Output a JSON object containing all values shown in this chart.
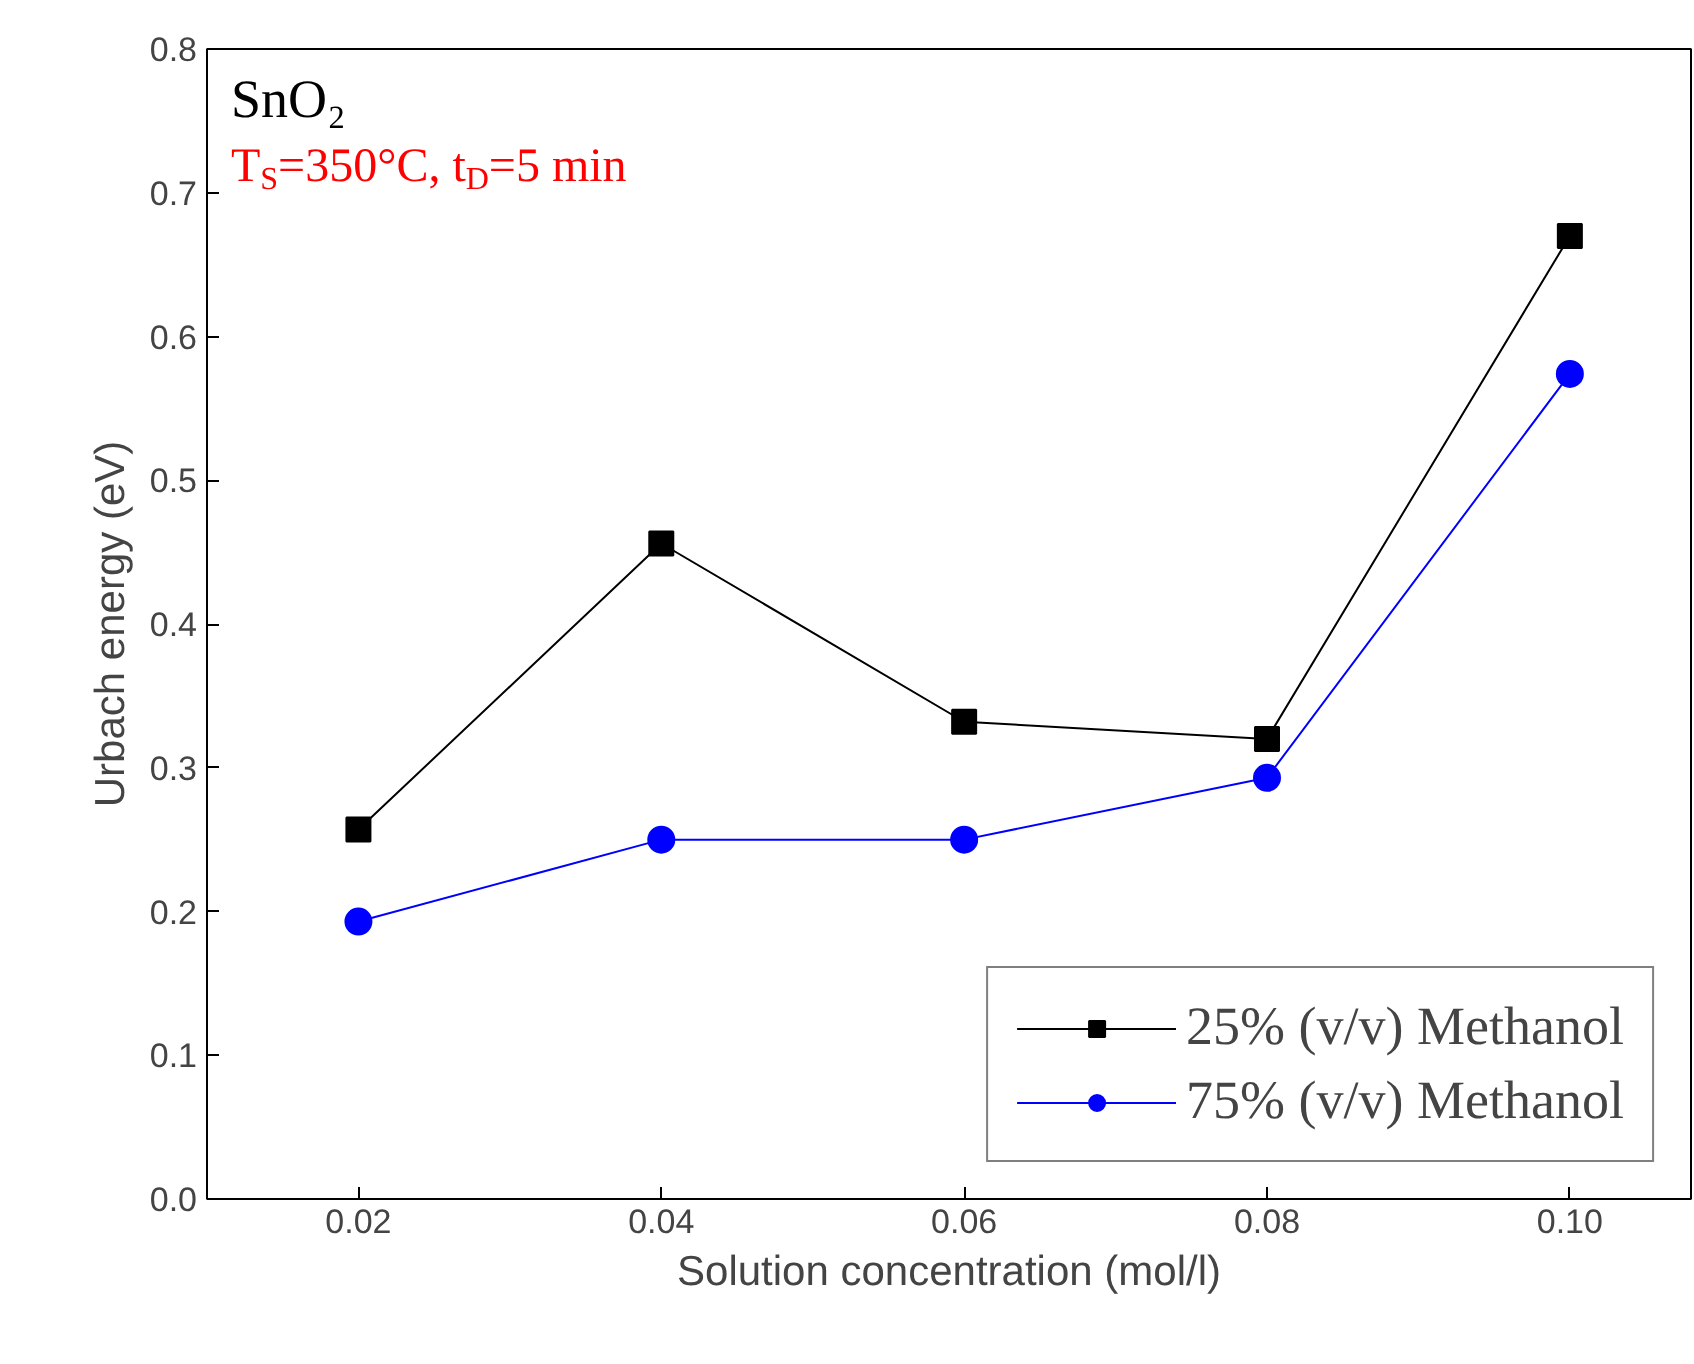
{
  "chart_data": {
    "type": "line",
    "xlabel": "Solution concentration (mol/l)",
    "ylabel": "Urbach energy (eV)",
    "x": [
      0.02,
      0.04,
      0.06,
      0.08,
      0.1
    ],
    "series": [
      {
        "name": "25% (v/v) Methanol",
        "color": "#000000",
        "marker": "square",
        "values": [
          0.257,
          0.456,
          0.332,
          0.32,
          0.67
        ]
      },
      {
        "name": "75% (v/v) Methanol",
        "color": "#0000ff",
        "marker": "circle",
        "values": [
          0.193,
          0.25,
          0.25,
          0.293,
          0.574
        ]
      }
    ],
    "xlim": [
      0.01,
      0.108
    ],
    "ylim": [
      0,
      0.8
    ],
    "xticks": [
      0.02,
      0.04,
      0.06,
      0.08,
      {
        "value": 0.1,
        "label": "0.10"
      }
    ],
    "yticks": [
      {
        "value": 0,
        "label": "0.0"
      },
      0.1,
      0.2,
      0.3,
      0.4,
      0.5,
      0.6,
      0.7,
      0.8
    ],
    "annotations": [
      "SnO₂",
      "T$_{S}$=350°C, t$_{D}$=5 min"
    ],
    "legend": "bottom right",
    "grid": false
  }
}
